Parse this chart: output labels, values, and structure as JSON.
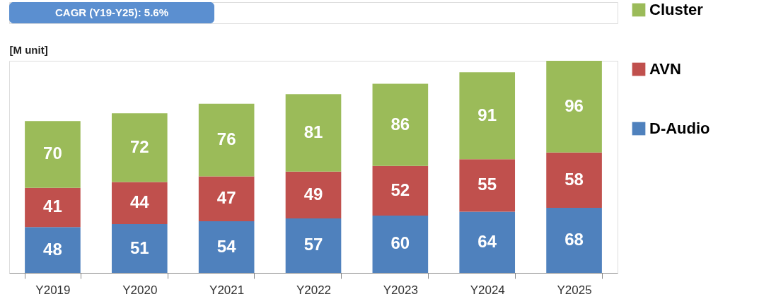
{
  "chart_data": {
    "type": "bar",
    "title": "CAGR (Y19-Y25): 5.6%",
    "ylabel": "[M unit]",
    "stacked": true,
    "data_labels": true,
    "legend": "right",
    "grid": false,
    "categories": [
      "Y2019",
      "Y2020",
      "Y2021",
      "Y2022",
      "Y2023",
      "Y2024",
      "Y2025"
    ],
    "series": [
      {
        "name": "D-Audio",
        "color": "#4f81bd",
        "values": [
          48,
          51,
          54,
          57,
          60,
          64,
          68
        ]
      },
      {
        "name": "AVN",
        "color": "#c0504d",
        "values": [
          41,
          44,
          47,
          49,
          52,
          55,
          58
        ]
      },
      {
        "name": "Cluster",
        "color": "#9bbb59",
        "values": [
          70,
          72,
          76,
          81,
          86,
          91,
          96
        ]
      }
    ]
  }
}
